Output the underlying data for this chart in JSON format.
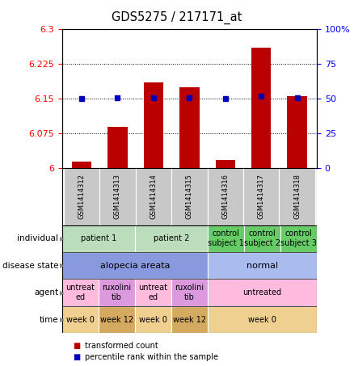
{
  "title": "GDS5275 / 217171_at",
  "samples": [
    "GSM1414312",
    "GSM1414313",
    "GSM1414314",
    "GSM1414315",
    "GSM1414316",
    "GSM1414317",
    "GSM1414318"
  ],
  "bar_values": [
    6.015,
    6.09,
    6.185,
    6.175,
    6.018,
    6.26,
    6.155
  ],
  "dot_values": [
    6.15,
    6.153,
    6.152,
    6.153,
    6.15,
    6.155,
    6.152
  ],
  "ylim_left": [
    6.0,
    6.3
  ],
  "ylim_right": [
    0,
    100
  ],
  "yticks_left": [
    6.0,
    6.075,
    6.15,
    6.225,
    6.3
  ],
  "yticks_right": [
    0,
    25,
    50,
    75,
    100
  ],
  "ytick_labels_left": [
    "6",
    "6.075",
    "6.15",
    "6.225",
    "6.3"
  ],
  "ytick_labels_right": [
    "0",
    "25",
    "50",
    "75",
    "100%"
  ],
  "bar_color": "#bb0000",
  "dot_color": "#0000bb",
  "individual_data": [
    {
      "label": "patient 1",
      "cols": [
        0,
        1
      ],
      "color": "#bbddbb"
    },
    {
      "label": "patient 2",
      "cols": [
        2,
        3
      ],
      "color": "#bbddbb"
    },
    {
      "label": "control\nsubject 1",
      "cols": [
        4
      ],
      "color": "#66cc66"
    },
    {
      "label": "control\nsubject 2",
      "cols": [
        5
      ],
      "color": "#66cc66"
    },
    {
      "label": "control\nsubject 3",
      "cols": [
        6
      ],
      "color": "#66cc66"
    }
  ],
  "disease_data": [
    {
      "label": "alopecia areata",
      "cols": [
        0,
        1,
        2,
        3
      ],
      "color": "#8899dd"
    },
    {
      "label": "normal",
      "cols": [
        4,
        5,
        6
      ],
      "color": "#aabbee"
    }
  ],
  "agent_data": [
    {
      "label": "untreat\ned",
      "cols": [
        0
      ],
      "color": "#ffbbdd"
    },
    {
      "label": "ruxolini\ntib",
      "cols": [
        1
      ],
      "color": "#dd99dd"
    },
    {
      "label": "untreat\ned",
      "cols": [
        2
      ],
      "color": "#ffbbdd"
    },
    {
      "label": "ruxolini\ntib",
      "cols": [
        3
      ],
      "color": "#dd99dd"
    },
    {
      "label": "untreated",
      "cols": [
        4,
        5,
        6
      ],
      "color": "#ffbbdd"
    }
  ],
  "time_data": [
    {
      "label": "week 0",
      "cols": [
        0
      ],
      "color": "#f0d090"
    },
    {
      "label": "week 12",
      "cols": [
        1
      ],
      "color": "#d4aa60"
    },
    {
      "label": "week 0",
      "cols": [
        2
      ],
      "color": "#f0d090"
    },
    {
      "label": "week 12",
      "cols": [
        3
      ],
      "color": "#d4aa60"
    },
    {
      "label": "week 0",
      "cols": [
        4,
        5,
        6
      ],
      "color": "#f0d090"
    }
  ],
  "row_labels": [
    "individual",
    "disease state",
    "agent",
    "time"
  ],
  "legend_items": [
    {
      "label": "transformed count",
      "color": "#bb0000"
    },
    {
      "label": "percentile rank within the sample",
      "color": "#0000bb"
    }
  ]
}
